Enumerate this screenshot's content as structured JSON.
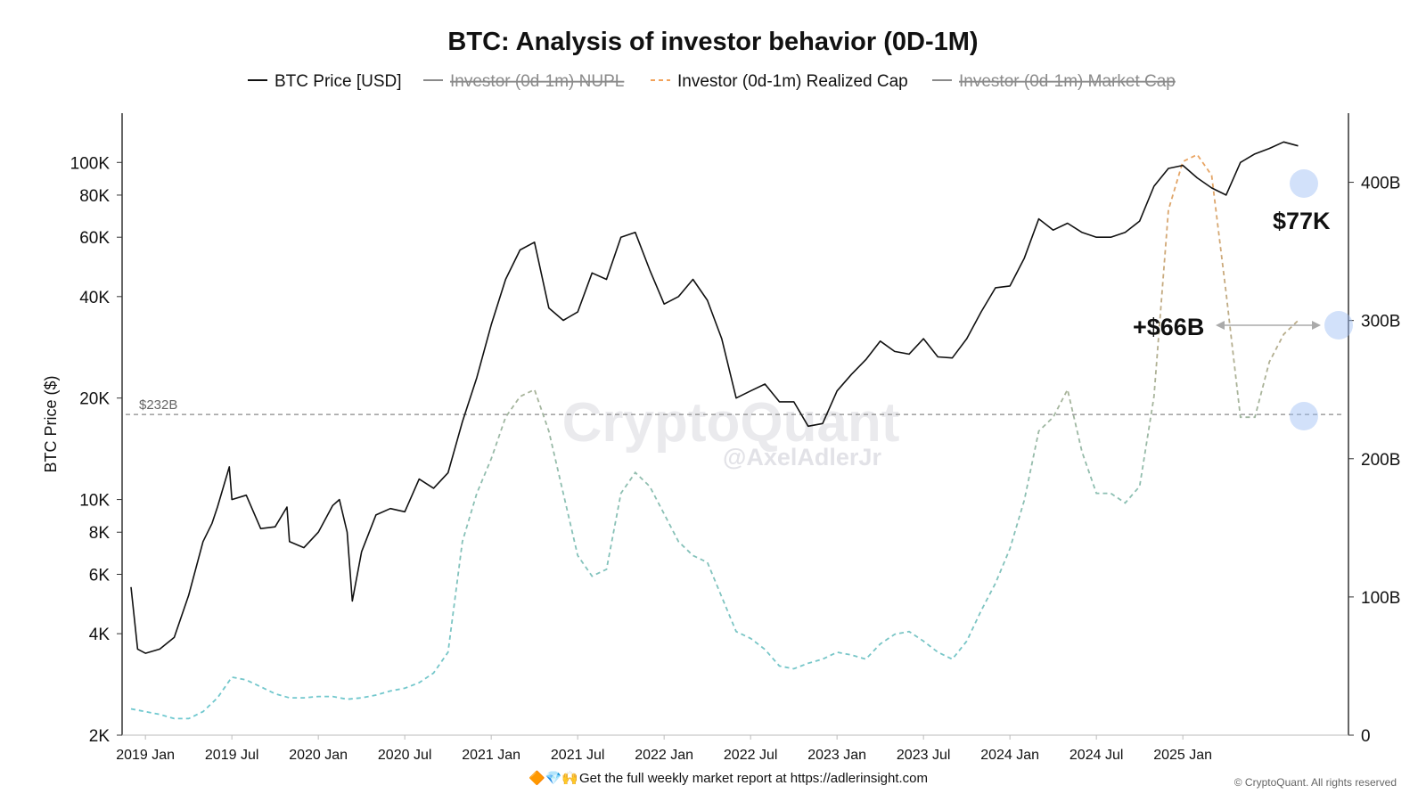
{
  "chart_data": {
    "type": "line",
    "title": "BTC: Analysis of investor behavior (0D-1M)",
    "ylabel": "BTC Price ($)",
    "y_scale": "log",
    "ylim": [
      2000,
      140000
    ],
    "y2lim": [
      0,
      450
    ],
    "yticks": [
      {
        "value": 2000,
        "label": "2K"
      },
      {
        "value": 4000,
        "label": "4K"
      },
      {
        "value": 6000,
        "label": "6K"
      },
      {
        "value": 8000,
        "label": "8K"
      },
      {
        "value": 10000,
        "label": "10K"
      },
      {
        "value": 20000,
        "label": "20K"
      },
      {
        "value": 40000,
        "label": "40K"
      },
      {
        "value": 60000,
        "label": "60K"
      },
      {
        "value": 80000,
        "label": "80K"
      },
      {
        "value": 100000,
        "label": "100K"
      }
    ],
    "y2ticks": [
      {
        "value": 0,
        "label": "0"
      },
      {
        "value": 100,
        "label": "100B"
      },
      {
        "value": 200,
        "label": "200B"
      },
      {
        "value": 300,
        "label": "300B"
      },
      {
        "value": 400,
        "label": "400B"
      }
    ],
    "xlim": [
      "2018-12",
      "2025-12"
    ],
    "xticks": [
      {
        "value": "2019-01",
        "label": "2019 Jan"
      },
      {
        "value": "2019-07",
        "label": "2019 Jul"
      },
      {
        "value": "2020-01",
        "label": "2020 Jan"
      },
      {
        "value": "2020-07",
        "label": "2020 Jul"
      },
      {
        "value": "2021-01",
        "label": "2021 Jan"
      },
      {
        "value": "2021-07",
        "label": "2021 Jul"
      },
      {
        "value": "2022-01",
        "label": "2022 Jan"
      },
      {
        "value": "2022-07",
        "label": "2022 Jul"
      },
      {
        "value": "2023-01",
        "label": "2023 Jan"
      },
      {
        "value": "2023-07",
        "label": "2023 Jul"
      },
      {
        "value": "2024-01",
        "label": "2024 Jan"
      },
      {
        "value": "2024-07",
        "label": "2024 Jul"
      },
      {
        "value": "2025-01",
        "label": "2025 Jan"
      }
    ],
    "legend_placement": "top-center",
    "legend": [
      {
        "name": "BTC Price [USD]",
        "style": "solid",
        "color": "#111111",
        "hidden": false
      },
      {
        "name": "Investor (0d-1m) NUPL",
        "style": "solid",
        "color": "#8a8a8a",
        "hidden": true
      },
      {
        "name": "Investor (0d-1m) Realized Cap",
        "style": "dashed",
        "color": "#f2a25a",
        "hidden": false
      },
      {
        "name": "Investor (0d-1m) Market Cap",
        "style": "solid",
        "color": "#8a8a8a",
        "hidden": true
      }
    ],
    "series": [
      {
        "name": "BTC Price [USD]",
        "axis": "left",
        "color": "#111111",
        "x": [
          "2018-12",
          "2018-12-15",
          "2019-01",
          "2019-02",
          "2019-03",
          "2019-04",
          "2019-05",
          "2019-05-20",
          "2019-06",
          "2019-06-26",
          "2019-07",
          "2019-08",
          "2019-09",
          "2019-10",
          "2019-10-26",
          "2019-11",
          "2019-12",
          "2020-01",
          "2020-02",
          "2020-02-15",
          "2020-03",
          "2020-03-12",
          "2020-04",
          "2020-05",
          "2020-06",
          "2020-07",
          "2020-08",
          "2020-09",
          "2020-10",
          "2020-11",
          "2020-12",
          "2021-01",
          "2021-02",
          "2021-03",
          "2021-04",
          "2021-05",
          "2021-06",
          "2021-07",
          "2021-08",
          "2021-09",
          "2021-10",
          "2021-11",
          "2021-12",
          "2022-01",
          "2022-02",
          "2022-03",
          "2022-04",
          "2022-05",
          "2022-06",
          "2022-07",
          "2022-08",
          "2022-09",
          "2022-10",
          "2022-11",
          "2022-12",
          "2023-01",
          "2023-02",
          "2023-03",
          "2023-04",
          "2023-05",
          "2023-06",
          "2023-07",
          "2023-08",
          "2023-09",
          "2023-10",
          "2023-11",
          "2023-12",
          "2024-01",
          "2024-02",
          "2024-03",
          "2024-04",
          "2024-05",
          "2024-06",
          "2024-07",
          "2024-08",
          "2024-09",
          "2024-10",
          "2024-11",
          "2024-12",
          "2025-01",
          "2025-02",
          "2025-03",
          "2025-04",
          "2025-05",
          "2025-06",
          "2025-07",
          "2025-08",
          "2025-09"
        ],
        "y": [
          5500,
          3600,
          3500,
          3600,
          3900,
          5200,
          7500,
          8500,
          9500,
          12500,
          10000,
          10300,
          8200,
          8300,
          9500,
          7500,
          7200,
          8000,
          9600,
          10000,
          8000,
          5000,
          7000,
          9000,
          9400,
          9200,
          11500,
          10800,
          12000,
          17000,
          23000,
          33000,
          45000,
          55000,
          58000,
          37000,
          34000,
          36000,
          47000,
          45000,
          60000,
          62000,
          48000,
          38000,
          40000,
          45000,
          39000,
          30000,
          20000,
          21000,
          22000,
          19500,
          19500,
          16500,
          16800,
          21000,
          23500,
          26000,
          29500,
          27500,
          27000,
          30000,
          26500,
          26300,
          30000,
          36000,
          42500,
          43000,
          52000,
          68000,
          63000,
          66000,
          62000,
          60000,
          60000,
          62000,
          67000,
          85000,
          96000,
          98000,
          90000,
          84000,
          80000,
          100000,
          106000,
          110000,
          115000,
          112000
        ]
      },
      {
        "name": "Investor (0d-1m) Realized Cap",
        "axis": "right",
        "color": "#f2a25a",
        "x": [
          "2018-12",
          "2019-01",
          "2019-02",
          "2019-03",
          "2019-04",
          "2019-05",
          "2019-06",
          "2019-07",
          "2019-08",
          "2019-09",
          "2019-10",
          "2019-11",
          "2019-12",
          "2020-01",
          "2020-02",
          "2020-03",
          "2020-04",
          "2020-05",
          "2020-06",
          "2020-07",
          "2020-08",
          "2020-09",
          "2020-10",
          "2020-11",
          "2020-12",
          "2021-01",
          "2021-02",
          "2021-03",
          "2021-04",
          "2021-05",
          "2021-06",
          "2021-07",
          "2021-08",
          "2021-09",
          "2021-10",
          "2021-11",
          "2021-12",
          "2022-01",
          "2022-02",
          "2022-03",
          "2022-04",
          "2022-05",
          "2022-06",
          "2022-07",
          "2022-08",
          "2022-09",
          "2022-10",
          "2022-11",
          "2022-12",
          "2023-01",
          "2023-02",
          "2023-03",
          "2023-04",
          "2023-05",
          "2023-06",
          "2023-07",
          "2023-08",
          "2023-09",
          "2023-10",
          "2023-11",
          "2023-12",
          "2024-01",
          "2024-02",
          "2024-03",
          "2024-04",
          "2024-05",
          "2024-06",
          "2024-07",
          "2024-08",
          "2024-09",
          "2024-10",
          "2024-11",
          "2024-12",
          "2025-01",
          "2025-02",
          "2025-03",
          "2025-04",
          "2025-05",
          "2025-06",
          "2025-07",
          "2025-08",
          "2025-09"
        ],
        "y": [
          19,
          17,
          15,
          12,
          12,
          17,
          27,
          42,
          40,
          35,
          30,
          27,
          27,
          28,
          28,
          26,
          27,
          29,
          32,
          34,
          38,
          45,
          60,
          140,
          175,
          200,
          230,
          245,
          250,
          220,
          175,
          130,
          115,
          120,
          175,
          190,
          180,
          160,
          140,
          130,
          125,
          100,
          75,
          70,
          62,
          50,
          48,
          52,
          55,
          60,
          58,
          55,
          66,
          73,
          75,
          68,
          60,
          55,
          68,
          90,
          110,
          135,
          170,
          220,
          230,
          250,
          205,
          175,
          175,
          168,
          180,
          245,
          380,
          415,
          420,
          405,
          320,
          230,
          230,
          270,
          290,
          300
        ]
      }
    ],
    "reference_lines": [
      {
        "axis": "right",
        "value": 232,
        "label": "$232B",
        "style": "dashed"
      }
    ],
    "annotations": [
      {
        "text": "$77K"
      },
      {
        "text": "+$66B"
      }
    ]
  },
  "watermark": {
    "brand": "CryptoQuant",
    "handle": "@AxelAdlerJr"
  },
  "footer": {
    "emoji": "🔶💎🙌",
    "text": "Get the full weekly market report at https://adlerinsight.com",
    "copyright": "© CryptoQuant. All rights reserved"
  }
}
